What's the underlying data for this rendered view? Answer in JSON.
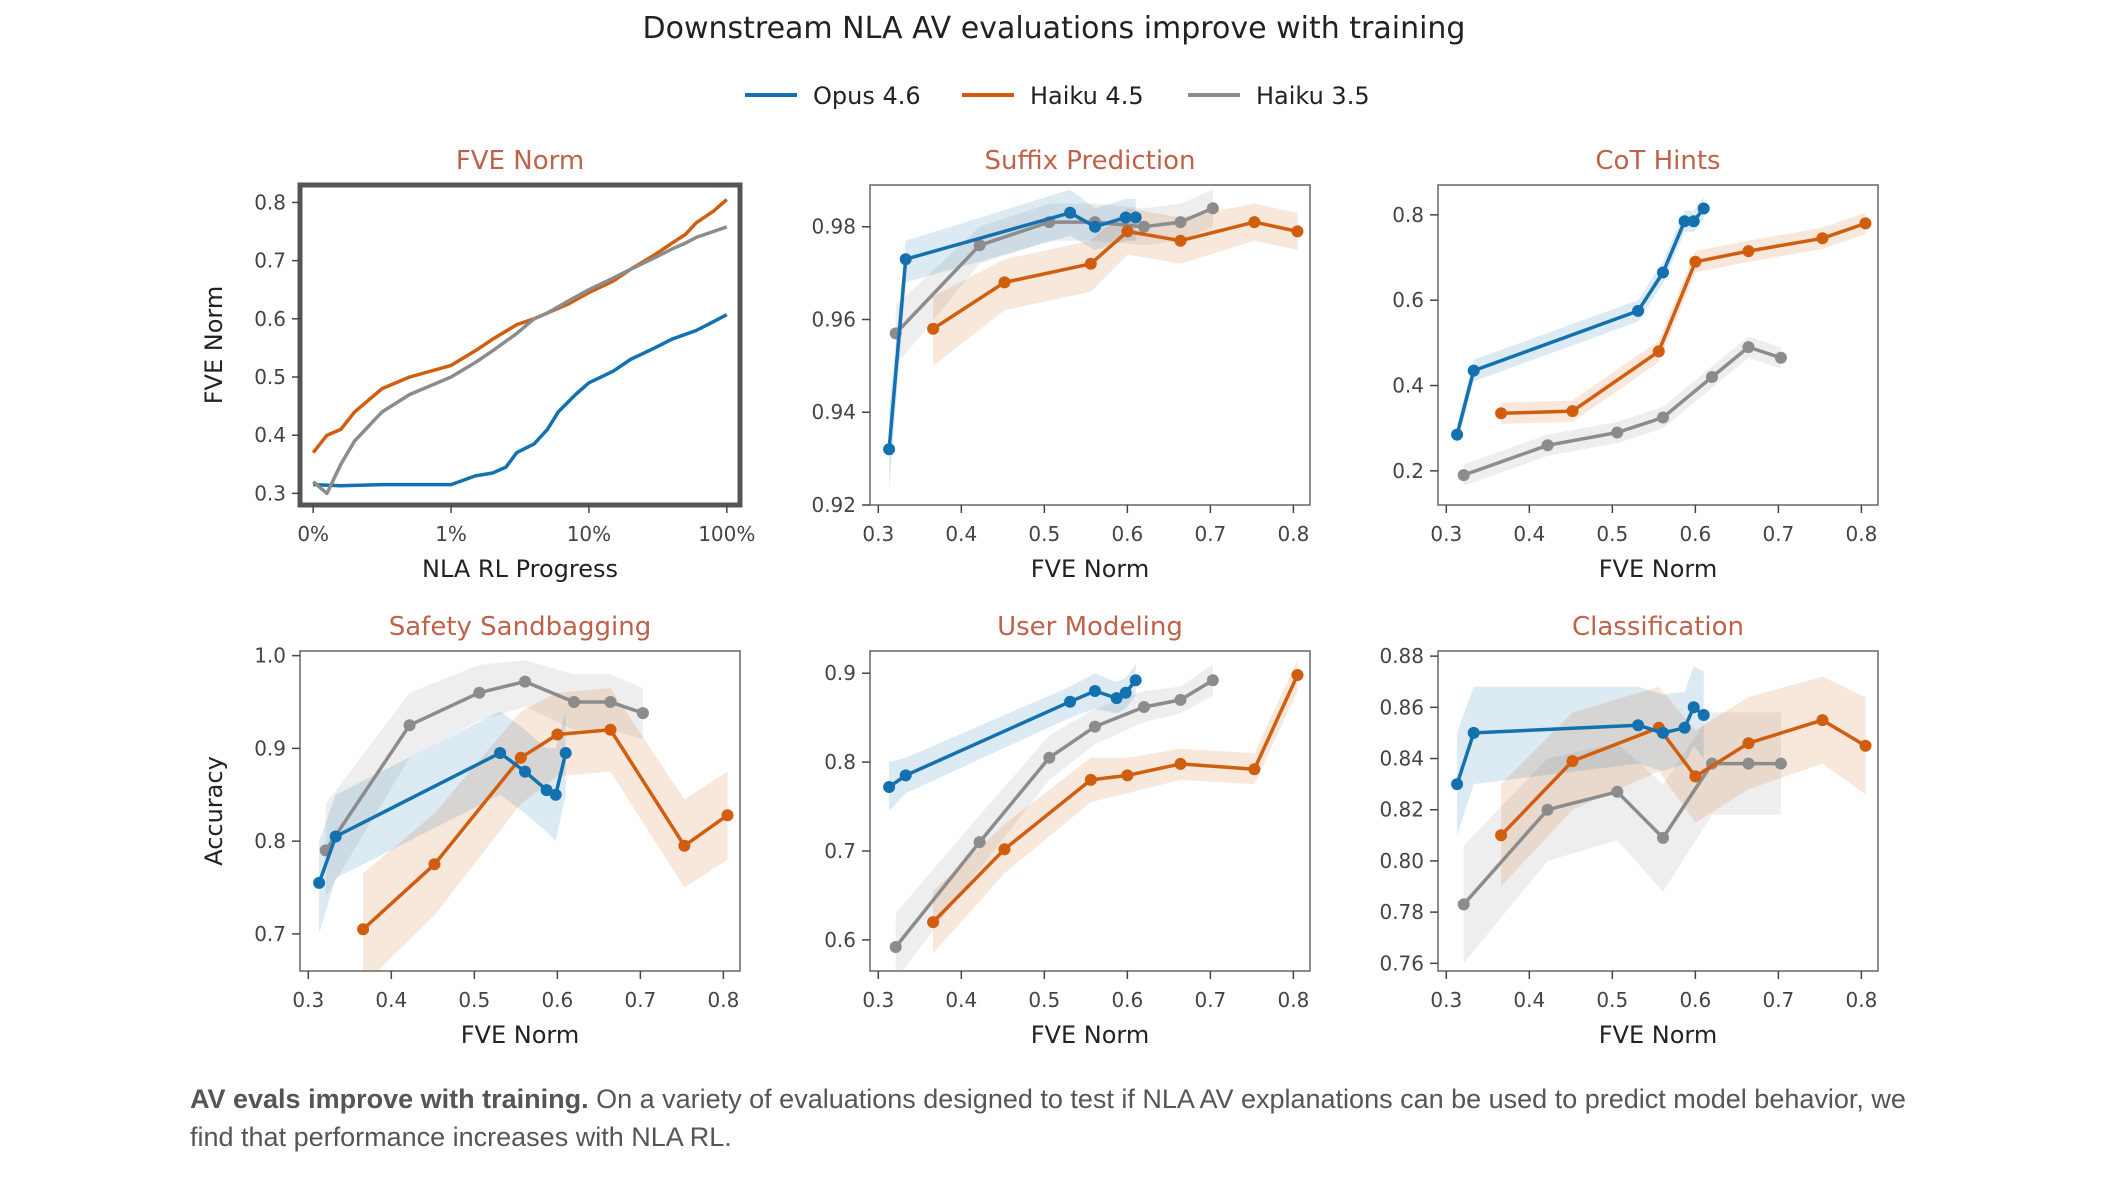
{
  "figure": {
    "title": "Downstream NLA AV evaluations improve with training",
    "caption_bold": "AV evals improve with training.",
    "caption_text": " On a variety of evaluations designed to test if NLA AV explanations can be used to predict model behavior, we find that performance increases with NLA RL."
  },
  "colors": {
    "opus": "#1471b0",
    "haiku45": "#d05e0e",
    "haiku35": "#8c8c8c",
    "title": "#c0624a",
    "axis": "#555555"
  },
  "legend": [
    {
      "name": "Opus 4.6",
      "color": "#1471b0"
    },
    {
      "name": "Haiku 4.5",
      "color": "#d05e0e"
    },
    {
      "name": "Haiku 3.5",
      "color": "#8c8c8c"
    }
  ],
  "chart_data": [
    {
      "type": "line",
      "title": "FVE Norm",
      "xlabel": "NLA RL Progress",
      "ylabel": "FVE Norm",
      "xscale": "symlog",
      "xticks": [
        "0%",
        "1%",
        "10%",
        "100%"
      ],
      "xlim": [
        0,
        100
      ],
      "ylim": [
        0.28,
        0.83
      ],
      "yticks": [
        0.3,
        0.4,
        0.5,
        0.6,
        0.7,
        0.8
      ],
      "series": [
        {
          "name": "Opus 4.6",
          "x": [
            0,
            0.2,
            0.5,
            1,
            1.5,
            2,
            2.5,
            3,
            4,
            5,
            6,
            8,
            10,
            15,
            20,
            30,
            40,
            60,
            80,
            100
          ],
          "values": [
            0.315,
            0.313,
            0.315,
            0.315,
            0.33,
            0.335,
            0.345,
            0.37,
            0.385,
            0.41,
            0.44,
            0.47,
            0.49,
            0.51,
            0.53,
            0.55,
            0.565,
            0.58,
            0.595,
            0.607
          ]
        },
        {
          "name": "Haiku 4.5",
          "x": [
            0,
            0.1,
            0.2,
            0.3,
            0.5,
            0.7,
            1,
            1.5,
            2,
            3,
            4,
            5,
            7,
            10,
            15,
            20,
            30,
            40,
            50,
            60,
            80,
            100
          ],
          "values": [
            0.37,
            0.4,
            0.41,
            0.44,
            0.48,
            0.5,
            0.52,
            0.545,
            0.565,
            0.59,
            0.6,
            0.61,
            0.625,
            0.645,
            0.665,
            0.685,
            0.71,
            0.73,
            0.745,
            0.765,
            0.785,
            0.805
          ]
        },
        {
          "name": "Haiku 3.5",
          "x": [
            0,
            0.1,
            0.2,
            0.3,
            0.5,
            0.7,
            1,
            1.5,
            2,
            3,
            4,
            5,
            7,
            10,
            15,
            20,
            30,
            40,
            50,
            60,
            80,
            100
          ],
          "values": [
            0.32,
            0.3,
            0.35,
            0.39,
            0.44,
            0.47,
            0.5,
            0.525,
            0.545,
            0.575,
            0.6,
            0.61,
            0.63,
            0.65,
            0.67,
            0.685,
            0.705,
            0.72,
            0.73,
            0.74,
            0.75,
            0.758
          ]
        }
      ]
    },
    {
      "type": "line",
      "title": "Suffix Prediction",
      "xlabel": "FVE Norm",
      "ylabel": "",
      "xlim": [
        0.29,
        0.82
      ],
      "ylim": [
        0.92,
        0.989
      ],
      "xticks": [
        0.3,
        0.4,
        0.5,
        0.6,
        0.7,
        0.8
      ],
      "yticks": [
        0.92,
        0.94,
        0.96,
        0.98
      ],
      "series": [
        {
          "name": "Opus 4.6",
          "x": [
            0.313,
            0.333,
            0.531,
            0.561,
            0.598,
            0.61
          ],
          "values": [
            0.932,
            0.973,
            0.983,
            0.98,
            0.982,
            0.982
          ],
          "lo": [
            0.923,
            0.968,
            0.978,
            0.975,
            0.977,
            0.977
          ],
          "hi": [
            0.94,
            0.977,
            0.988,
            0.984,
            0.986,
            0.986
          ]
        },
        {
          "name": "Haiku 4.5",
          "x": [
            0.366,
            0.452,
            0.556,
            0.6,
            0.664,
            0.753,
            0.805
          ],
          "values": [
            0.958,
            0.968,
            0.972,
            0.979,
            0.977,
            0.981,
            0.979
          ],
          "lo": [
            0.95,
            0.962,
            0.966,
            0.974,
            0.972,
            0.977,
            0.975
          ],
          "hi": [
            0.965,
            0.973,
            0.977,
            0.984,
            0.982,
            0.985,
            0.983
          ]
        },
        {
          "name": "Haiku 3.5",
          "x": [
            0.321,
            0.422,
            0.506,
            0.561,
            0.62,
            0.664,
            0.703
          ],
          "values": [
            0.957,
            0.976,
            0.981,
            0.981,
            0.98,
            0.981,
            0.984
          ],
          "lo": [
            0.95,
            0.972,
            0.977,
            0.977,
            0.976,
            0.977,
            0.98
          ],
          "hi": [
            0.963,
            0.98,
            0.985,
            0.985,
            0.984,
            0.985,
            0.988
          ]
        }
      ]
    },
    {
      "type": "line",
      "title": "CoT Hints",
      "xlabel": "FVE Norm",
      "ylabel": "",
      "xlim": [
        0.29,
        0.82
      ],
      "ylim": [
        0.12,
        0.87
      ],
      "xticks": [
        0.3,
        0.4,
        0.5,
        0.6,
        0.7,
        0.8
      ],
      "yticks": [
        0.2,
        0.4,
        0.6,
        0.8
      ],
      "series": [
        {
          "name": "Opus 4.6",
          "x": [
            0.313,
            0.333,
            0.531,
            0.561,
            0.587,
            0.598,
            0.61
          ],
          "values": [
            0.285,
            0.435,
            0.575,
            0.665,
            0.785,
            0.785,
            0.815
          ],
          "lo": [
            0.26,
            0.41,
            0.55,
            0.64,
            0.76,
            0.76,
            0.79
          ],
          "hi": [
            0.31,
            0.46,
            0.6,
            0.69,
            0.81,
            0.81,
            0.84
          ]
        },
        {
          "name": "Haiku 4.5",
          "x": [
            0.366,
            0.452,
            0.556,
            0.6,
            0.664,
            0.753,
            0.805
          ],
          "values": [
            0.335,
            0.34,
            0.48,
            0.69,
            0.715,
            0.745,
            0.78
          ],
          "lo": [
            0.31,
            0.315,
            0.455,
            0.665,
            0.69,
            0.72,
            0.755
          ],
          "hi": [
            0.36,
            0.365,
            0.505,
            0.715,
            0.74,
            0.77,
            0.805
          ]
        },
        {
          "name": "Haiku 3.5",
          "x": [
            0.321,
            0.422,
            0.506,
            0.561,
            0.62,
            0.664,
            0.703
          ],
          "values": [
            0.19,
            0.26,
            0.29,
            0.325,
            0.42,
            0.49,
            0.465
          ],
          "lo": [
            0.165,
            0.235,
            0.265,
            0.3,
            0.395,
            0.465,
            0.44
          ],
          "hi": [
            0.215,
            0.285,
            0.315,
            0.35,
            0.445,
            0.515,
            0.49
          ]
        }
      ]
    },
    {
      "type": "line",
      "title": "Safety Sandbagging",
      "xlabel": "FVE Norm",
      "ylabel": "Accuracy",
      "xlim": [
        0.29,
        0.82
      ],
      "ylim": [
        0.66,
        1.005
      ],
      "xticks": [
        0.3,
        0.4,
        0.5,
        0.6,
        0.7,
        0.8
      ],
      "yticks": [
        0.7,
        0.8,
        0.9,
        1.0
      ],
      "ytick_labels": [
        "0.7",
        "0.8",
        "0.9",
        "1.0"
      ],
      "series": [
        {
          "name": "Opus 4.6",
          "x": [
            0.313,
            0.333,
            0.531,
            0.561,
            0.587,
            0.598,
            0.61
          ],
          "values": [
            0.755,
            0.805,
            0.895,
            0.875,
            0.855,
            0.85,
            0.895
          ],
          "lo": [
            0.7,
            0.76,
            0.85,
            0.83,
            0.81,
            0.8,
            0.85
          ],
          "hi": [
            0.8,
            0.85,
            0.94,
            0.92,
            0.9,
            0.9,
            0.94
          ]
        },
        {
          "name": "Haiku 4.5",
          "x": [
            0.366,
            0.452,
            0.556,
            0.6,
            0.664,
            0.753,
            0.805
          ],
          "values": [
            0.705,
            0.775,
            0.89,
            0.915,
            0.92,
            0.795,
            0.828
          ],
          "lo": [
            0.645,
            0.72,
            0.84,
            0.87,
            0.875,
            0.75,
            0.78
          ],
          "hi": [
            0.765,
            0.83,
            0.94,
            0.96,
            0.965,
            0.845,
            0.875
          ]
        },
        {
          "name": "Haiku 3.5",
          "x": [
            0.321,
            0.422,
            0.506,
            0.561,
            0.62,
            0.664,
            0.703
          ],
          "values": [
            0.79,
            0.925,
            0.96,
            0.972,
            0.95,
            0.95,
            0.938
          ],
          "lo": [
            0.74,
            0.89,
            0.93,
            0.945,
            0.92,
            0.92,
            0.91
          ],
          "hi": [
            0.84,
            0.96,
            0.99,
            0.995,
            0.98,
            0.98,
            0.965
          ]
        }
      ]
    },
    {
      "type": "line",
      "title": "User Modeling",
      "xlabel": "FVE Norm",
      "ylabel": "",
      "xlim": [
        0.29,
        0.82
      ],
      "ylim": [
        0.565,
        0.925
      ],
      "xticks": [
        0.3,
        0.4,
        0.5,
        0.6,
        0.7,
        0.8
      ],
      "yticks": [
        0.6,
        0.7,
        0.8,
        0.9
      ],
      "series": [
        {
          "name": "Opus 4.6",
          "x": [
            0.313,
            0.333,
            0.531,
            0.561,
            0.587,
            0.598,
            0.61
          ],
          "values": [
            0.772,
            0.785,
            0.868,
            0.88,
            0.872,
            0.878,
            0.892
          ],
          "lo": [
            0.745,
            0.765,
            0.85,
            0.86,
            0.855,
            0.86,
            0.875
          ],
          "hi": [
            0.8,
            0.805,
            0.885,
            0.9,
            0.89,
            0.895,
            0.91
          ]
        },
        {
          "name": "Haiku 4.5",
          "x": [
            0.366,
            0.452,
            0.556,
            0.6,
            0.664,
            0.753,
            0.805
          ],
          "values": [
            0.62,
            0.702,
            0.78,
            0.785,
            0.798,
            0.792,
            0.898
          ],
          "lo": [
            0.585,
            0.675,
            0.755,
            0.765,
            0.78,
            0.775,
            0.88
          ],
          "hi": [
            0.655,
            0.73,
            0.805,
            0.805,
            0.815,
            0.81,
            0.915
          ]
        },
        {
          "name": "Haiku 3.5",
          "x": [
            0.321,
            0.422,
            0.506,
            0.561,
            0.62,
            0.664,
            0.703
          ],
          "values": [
            0.592,
            0.71,
            0.805,
            0.84,
            0.862,
            0.87,
            0.892
          ],
          "lo": [
            0.555,
            0.68,
            0.78,
            0.82,
            0.845,
            0.855,
            0.875
          ],
          "hi": [
            0.63,
            0.74,
            0.83,
            0.86,
            0.88,
            0.885,
            0.91
          ]
        }
      ]
    },
    {
      "type": "line",
      "title": "Classification",
      "xlabel": "FVE Norm",
      "ylabel": "",
      "xlim": [
        0.29,
        0.82
      ],
      "ylim": [
        0.757,
        0.882
      ],
      "xticks": [
        0.3,
        0.4,
        0.5,
        0.6,
        0.7,
        0.8
      ],
      "yticks": [
        0.76,
        0.78,
        0.8,
        0.82,
        0.84,
        0.86,
        0.88
      ],
      "ytick_labels": [
        "0.76",
        "0.78",
        "0.80",
        "0.82",
        "0.84",
        "0.86",
        "0.88"
      ],
      "series": [
        {
          "name": "Opus 4.6",
          "x": [
            0.313,
            0.333,
            0.531,
            0.561,
            0.587,
            0.598,
            0.61
          ],
          "values": [
            0.83,
            0.85,
            0.853,
            0.85,
            0.852,
            0.86,
            0.857
          ],
          "lo": [
            0.81,
            0.83,
            0.838,
            0.835,
            0.838,
            0.845,
            0.84
          ],
          "hi": [
            0.85,
            0.868,
            0.868,
            0.865,
            0.866,
            0.876,
            0.874
          ]
        },
        {
          "name": "Haiku 4.5",
          "x": [
            0.366,
            0.452,
            0.556,
            0.6,
            0.664,
            0.753,
            0.805
          ],
          "values": [
            0.81,
            0.839,
            0.852,
            0.833,
            0.846,
            0.855,
            0.845
          ],
          "lo": [
            0.79,
            0.82,
            0.835,
            0.815,
            0.828,
            0.838,
            0.826
          ],
          "hi": [
            0.83,
            0.858,
            0.868,
            0.851,
            0.864,
            0.872,
            0.864
          ]
        },
        {
          "name": "Haiku 3.5",
          "x": [
            0.321,
            0.422,
            0.506,
            0.561,
            0.62,
            0.664,
            0.703
          ],
          "values": [
            0.783,
            0.82,
            0.827,
            0.809,
            0.838,
            0.838,
            0.838
          ],
          "lo": [
            0.76,
            0.8,
            0.808,
            0.788,
            0.818,
            0.818,
            0.818
          ],
          "hi": [
            0.806,
            0.84,
            0.846,
            0.83,
            0.858,
            0.858,
            0.858
          ]
        }
      ]
    }
  ]
}
